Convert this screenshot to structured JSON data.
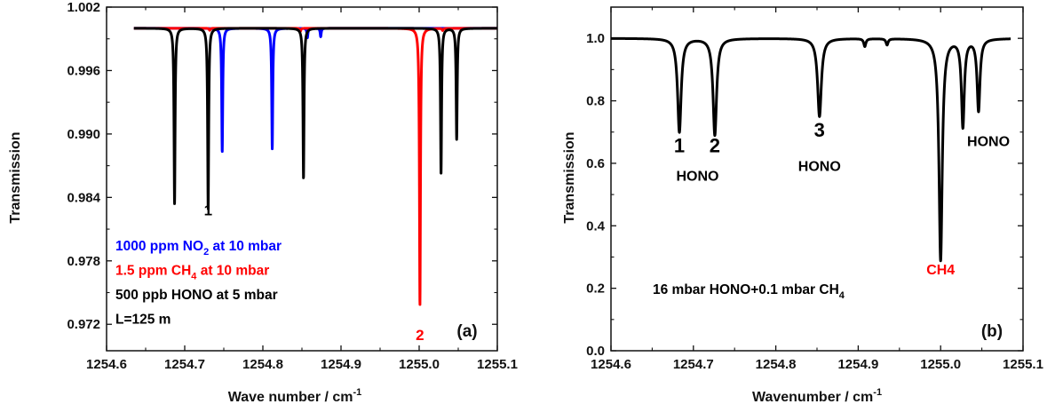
{
  "chart_data": [
    {
      "type": "line",
      "panel_label": "(a)",
      "xlabel": "Wave number / cm",
      "xlabel_sup": "-1",
      "ylabel": "Transmission",
      "xlim": [
        1254.6,
        1255.1
      ],
      "ylim": [
        0.9695,
        1.002
      ],
      "x_ticks": [
        "1254.6",
        "1254.7",
        "1254.8",
        "1254.9",
        "1255.0",
        "1255.1"
      ],
      "y_ticks": [
        "0.972",
        "0.978",
        "0.984",
        "0.990",
        "0.996",
        "1.002"
      ],
      "baseline": 1.0,
      "x_start": 1254.635,
      "series": [
        {
          "color": "#0000ff",
          "peaks": [
            {
              "x": 1254.748,
              "depth": 0.0117
            },
            {
              "x": 1254.812,
              "depth": 0.0114
            },
            {
              "x": 1254.857,
              "depth": 0.0009
            },
            {
              "x": 1254.874,
              "depth": 0.0008
            }
          ]
        },
        {
          "color": "#ff0000",
          "peaks": [
            {
              "x": 1254.732,
              "depth": 0.0002
            },
            {
              "x": 1254.848,
              "depth": 0.0003
            },
            {
              "x": 1255.001,
              "depth": 0.0262
            },
            {
              "x": 1255.03,
              "depth": 0.0002
            }
          ]
        },
        {
          "color": "#000000",
          "peaks": [
            {
              "x": 1254.687,
              "depth": 0.0166
            },
            {
              "x": 1254.73,
              "depth": 0.0171
            },
            {
              "x": 1254.852,
              "depth": 0.0142
            },
            {
              "x": 1255.028,
              "depth": 0.0138
            },
            {
              "x": 1255.048,
              "depth": 0.0105
            }
          ]
        }
      ],
      "peak_labels": [
        {
          "text": "1",
          "x": 1254.73,
          "y": 0.9823,
          "color": "#000000"
        },
        {
          "text": "2",
          "x": 1255.001,
          "y": 0.9705,
          "color": "#ff0000"
        }
      ],
      "legend": [
        {
          "pre": "1000 ppm NO",
          "sub": "2",
          "post": " at 10 mbar",
          "color": "#0000ff"
        },
        {
          "pre": "1.5 ppm CH",
          "sub": "4",
          "post": " at 10 mbar",
          "color": "#ff0000"
        },
        {
          "pre": "500 ppb HONO at 5 mbar",
          "sub": "",
          "post": "",
          "color": "#000000"
        },
        {
          "pre": "L=125 m",
          "sub": "",
          "post": "",
          "color": "#000000"
        }
      ]
    },
    {
      "type": "line",
      "panel_label": "(b)",
      "xlabel": "Wavenumber / cm",
      "xlabel_sup": "-1",
      "ylabel": "Transmission",
      "xlim": [
        1254.6,
        1255.1
      ],
      "ylim": [
        0.0,
        1.1
      ],
      "x_ticks": [
        "1254.6",
        "1254.7",
        "1254.8",
        "1254.9",
        "1255.0",
        "1255.1"
      ],
      "y_ticks": [
        "0.0",
        "0.2",
        "0.4",
        "0.6",
        "0.8",
        "1.0"
      ],
      "baseline": 1.0,
      "x_start": 1254.6,
      "x_end": 1255.085,
      "series": [
        {
          "color": "#000000",
          "peaks": [
            {
              "x": 1254.683,
              "depth": 0.3,
              "width": 0.0052
            },
            {
              "x": 1254.726,
              "depth": 0.31,
              "width": 0.0052
            },
            {
              "x": 1254.853,
              "depth": 0.25,
              "width": 0.0055
            },
            {
              "x": 1254.908,
              "depth": 0.025,
              "width": 0.003
            },
            {
              "x": 1254.935,
              "depth": 0.02,
              "width": 0.003
            },
            {
              "x": 1255.0,
              "depth": 0.71,
              "width": 0.0048
            },
            {
              "x": 1255.027,
              "depth": 0.28,
              "width": 0.0042
            },
            {
              "x": 1255.046,
              "depth": 0.23,
              "width": 0.0042
            }
          ]
        }
      ],
      "annotations": [
        {
          "text": "1",
          "x": 1254.683,
          "y": 0.635,
          "color": "#000000",
          "size": 22
        },
        {
          "text": "2",
          "x": 1254.726,
          "y": 0.635,
          "color": "#000000",
          "size": 22
        },
        {
          "text": "HONO",
          "x": 1254.705,
          "y": 0.545,
          "color": "#000000",
          "size": 16
        },
        {
          "text": "3",
          "x": 1254.853,
          "y": 0.685,
          "color": "#000000",
          "size": 22
        },
        {
          "text": "HONO",
          "x": 1254.853,
          "y": 0.575,
          "color": "#000000",
          "size": 16
        },
        {
          "text": "HONO",
          "x": 1255.058,
          "y": 0.655,
          "color": "#000000",
          "size": 16
        },
        {
          "text": "CH4",
          "x": 1255.0,
          "y": 0.245,
          "color": "#ff0000",
          "size": 16
        }
      ],
      "legend": [
        {
          "pre": "16 mbar HONO+0.1 mbar CH",
          "sub": "4",
          "post": "",
          "color": "#000000"
        }
      ]
    }
  ]
}
